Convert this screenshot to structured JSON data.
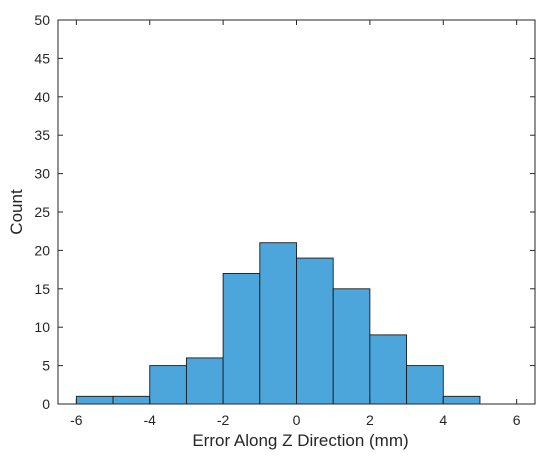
{
  "chart_data": {
    "type": "bar",
    "subtype": "histogram",
    "bin_edges": [
      -6,
      -5,
      -4,
      -3,
      -2,
      -1,
      0,
      1,
      2,
      3,
      4,
      5
    ],
    "counts": [
      1,
      1,
      5,
      6,
      17,
      21,
      19,
      15,
      9,
      5,
      1
    ],
    "xlabel": "Error Along Z Direction (mm)",
    "ylabel": "Count",
    "xlim": [
      -6.5,
      6.5
    ],
    "ylim": [
      0,
      50
    ],
    "xticks": [
      -6,
      -4,
      -2,
      0,
      2,
      4,
      6
    ],
    "yticks": [
      0,
      5,
      10,
      15,
      20,
      25,
      30,
      35,
      40,
      45,
      50
    ],
    "bar_color": "#4DA6DB",
    "bar_edge_color": "#1A1A1A",
    "grid": false,
    "legend": "none"
  }
}
